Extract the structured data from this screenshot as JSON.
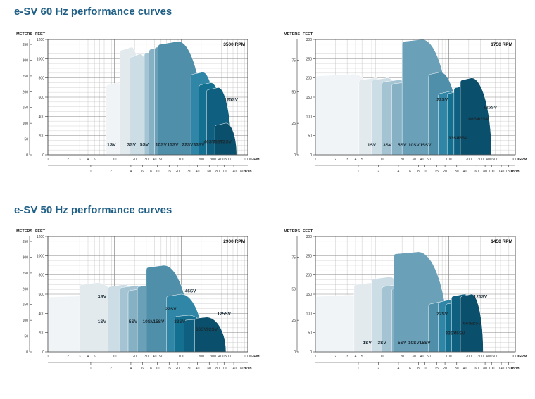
{
  "titles": {
    "hz60": "e-SV 60 Hz performance curves",
    "hz50": "e-SV 50 Hz performance curves"
  },
  "units": {
    "meters": "METERS",
    "feet": "FEET",
    "gpm": "GPM",
    "m3h": "m³/h"
  },
  "colors": {
    "grid_major": "#8a8a8a",
    "grid_minor": "#bdbdbd",
    "axis": "#333333",
    "shades": [
      "#f0f4f6",
      "#e2eaee",
      "#ccdde5",
      "#b9d1dc",
      "#a5c4d3",
      "#86b1c4",
      "#6aa1b9",
      "#4f8fa9",
      "#2f86a6",
      "#1b7f9d",
      "#137090",
      "#0f6080",
      "#0a4f6b"
    ]
  },
  "chart_data": [
    {
      "type": "area",
      "rpm": "3500 RPM",
      "feet_max": 1200,
      "x_gpm_range": [
        1,
        1000
      ],
      "x_m3h_range": [
        0.2272,
        227.2
      ],
      "meters_ticks": [
        "350",
        "300",
        "250",
        "200",
        "150",
        "100",
        "50",
        "0"
      ],
      "feet_ticks": [
        "1200",
        "1000",
        "800",
        "600",
        "400",
        "200",
        "0"
      ],
      "gpm_ticks": [
        "1",
        "2",
        "3",
        "4",
        "5",
        "10",
        "20",
        "30",
        "40",
        "50",
        "100",
        "200",
        "300",
        "400",
        "500",
        "1000"
      ],
      "m3h_ticks": [
        "1",
        "2",
        "4",
        "6",
        "8",
        "10",
        "15",
        "20",
        "30",
        "40",
        "60",
        "80",
        "100",
        "140",
        "180"
      ],
      "curves": [
        {
          "label": "1SV",
          "head_ft": 750,
          "shut_ft": 730,
          "x_start": 7.5,
          "x_knee": 11,
          "x_end": 16,
          "lx": 9,
          "ly": 90
        },
        {
          "label": "3SV",
          "head_ft": 1120,
          "shut_ft": 1090,
          "x_start": 12,
          "x_knee": 18,
          "x_end": 28,
          "lx": 18,
          "ly": 90
        },
        {
          "label": "5SV",
          "head_ft": 1050,
          "shut_ft": 1020,
          "x_start": 17,
          "x_knee": 24,
          "x_end": 42,
          "lx": 28,
          "ly": 90
        },
        {
          "label": "10SV",
          "head_ft": 1080,
          "shut_ft": 1060,
          "x_start": 28,
          "x_knee": 42,
          "x_end": 65,
          "lx": 50,
          "ly": 90
        },
        {
          "label": "15SV",
          "head_ft": 1120,
          "shut_ft": 1100,
          "x_start": 33,
          "x_knee": 55,
          "x_end": 100,
          "lx": 75,
          "ly": 90
        },
        {
          "label": "22SV",
          "head_ft": 1150,
          "shut_ft": 1120,
          "x_start": 40,
          "x_knee": 70,
          "x_end": 140,
          "lx": 125,
          "ly": 90
        },
        {
          "label": "33SV",
          "head_ft": 1180,
          "shut_ft": 1150,
          "x_start": 45,
          "x_knee": 90,
          "x_end": 230,
          "lx": 185,
          "ly": 90
        },
        {
          "label": "46SV",
          "head_ft": 860,
          "shut_ft": 840,
          "x_start": 140,
          "x_knee": 210,
          "x_end": 360,
          "lx": 265,
          "ly": 120
        },
        {
          "label": "66SV",
          "head_ft": 750,
          "shut_ft": 730,
          "x_start": 185,
          "x_knee": 280,
          "x_end": 460,
          "lx": 355,
          "ly": 120
        },
        {
          "label": "92SV",
          "head_ft": 700,
          "shut_ft": 680,
          "x_start": 240,
          "x_knee": 360,
          "x_end": 570,
          "lx": 470,
          "ly": 120
        },
        {
          "label": "125SV",
          "head_ft": 330,
          "shut_ft": 310,
          "x_start": 320,
          "x_knee": 470,
          "x_end": 680,
          "lx": 560,
          "ly": 560
        }
      ]
    },
    {
      "type": "area",
      "rpm": "1750 RPM",
      "feet_max": 300,
      "x_gpm_range": [
        1,
        1000
      ],
      "x_m3h_range": [
        0.2272,
        227.2
      ],
      "meters_ticks": [
        "75",
        "50",
        "25",
        "0"
      ],
      "feet_ticks": [
        "300",
        "250",
        "200",
        "150",
        "100",
        "50",
        "0"
      ],
      "gpm_ticks": [
        "1",
        "2",
        "3",
        "4",
        "5",
        "10",
        "20",
        "30",
        "40",
        "50",
        "100",
        "200",
        "300",
        "400",
        "500",
        "1000"
      ],
      "m3h_ticks": [
        "1",
        "2",
        "4",
        "6",
        "8",
        "10",
        "15",
        "20",
        "30",
        "40",
        "60",
        "80",
        "100",
        "140",
        "180"
      ],
      "curves": [
        {
          "label": "1SV",
          "head_ft": 210,
          "shut_ft": 205,
          "x_start": 1,
          "x_knee": 3.8,
          "x_end": 10,
          "lx": 7,
          "ly": 22
        },
        {
          "label": "3SV",
          "head_ft": 200,
          "shut_ft": 195,
          "x_start": 4.5,
          "x_knee": 8,
          "x_end": 16,
          "lx": 12,
          "ly": 22
        },
        {
          "label": "5SV",
          "head_ft": 200,
          "shut_ft": 195,
          "x_start": 7,
          "x_knee": 12,
          "x_end": 25,
          "lx": 20,
          "ly": 22
        },
        {
          "label": "10SV",
          "head_ft": 195,
          "shut_ft": 190,
          "x_start": 10,
          "x_knee": 18,
          "x_end": 38,
          "lx": 30,
          "ly": 22
        },
        {
          "label": "15SV",
          "head_ft": 190,
          "shut_ft": 185,
          "x_start": 14,
          "x_knee": 26,
          "x_end": 55,
          "lx": 45,
          "ly": 22
        },
        {
          "label": "22SV",
          "head_ft": 300,
          "shut_ft": 295,
          "x_start": 20,
          "x_knee": 40,
          "x_end": 110,
          "lx": 80,
          "ly": 140
        },
        {
          "label": "33SV",
          "head_ft": 215,
          "shut_ft": 210,
          "x_start": 50,
          "x_knee": 75,
          "x_end": 150,
          "lx": 120,
          "ly": 40
        },
        {
          "label": "46SV",
          "head_ft": 165,
          "shut_ft": 160,
          "x_start": 70,
          "x_knee": 105,
          "x_end": 220,
          "lx": 160,
          "ly": 40
        },
        {
          "label": "66SV",
          "head_ft": 165,
          "shut_ft": 160,
          "x_start": 95,
          "x_knee": 140,
          "x_end": 300,
          "lx": 240,
          "ly": 90
        },
        {
          "label": "92SV",
          "head_ft": 180,
          "shut_ft": 175,
          "x_start": 120,
          "x_knee": 180,
          "x_end": 390,
          "lx": 330,
          "ly": 90
        },
        {
          "label": "125SV",
          "head_ft": 200,
          "shut_ft": 195,
          "x_start": 150,
          "x_knee": 220,
          "x_end": 440,
          "lx": 420,
          "ly": 120
        }
      ]
    },
    {
      "type": "area",
      "rpm": "2900 RPM",
      "feet_max": 1200,
      "x_gpm_range": [
        1,
        1000
      ],
      "x_m3h_range": [
        0.2272,
        227.2
      ],
      "meters_ticks": [
        "350",
        "300",
        "250",
        "200",
        "150",
        "100",
        "50",
        "0"
      ],
      "feet_ticks": [
        "1200",
        "1000",
        "800",
        "600",
        "400",
        "200",
        "0"
      ],
      "gpm_ticks": [
        "1",
        "2",
        "3",
        "4",
        "5",
        "10",
        "20",
        "30",
        "40",
        "50",
        "100",
        "200",
        "300",
        "400",
        "500",
        "1000"
      ],
      "m3h_ticks": [
        "1",
        "2",
        "4",
        "6",
        "8",
        "10",
        "15",
        "20",
        "30",
        "40",
        "60",
        "80",
        "100",
        "140",
        "180"
      ],
      "curves": [
        {
          "label": "1SV",
          "head_ft": 580,
          "shut_ft": 570,
          "x_start": 1,
          "x_knee": 3.2,
          "x_end": 10,
          "lx": 6.5,
          "ly": 300
        },
        {
          "label": "3SV",
          "head_ft": 720,
          "shut_ft": 700,
          "x_start": 3,
          "x_knee": 5.5,
          "x_end": 16,
          "lx": 6.5,
          "ly": 560
        },
        {
          "label": "5SV",
          "head_ft": 700,
          "shut_ft": 680,
          "x_start": 8,
          "x_knee": 14,
          "x_end": 28,
          "lx": 19,
          "ly": 300
        },
        {
          "label": "10SV",
          "head_ft": 690,
          "shut_ft": 670,
          "x_start": 12,
          "x_knee": 22,
          "x_end": 45,
          "lx": 32,
          "ly": 300
        },
        {
          "label": "15SV",
          "head_ft": 660,
          "shut_ft": 640,
          "x_start": 16,
          "x_knee": 30,
          "x_end": 62,
          "lx": 46,
          "ly": 300
        },
        {
          "label": "22SV",
          "head_ft": 700,
          "shut_ft": 680,
          "x_start": 22,
          "x_knee": 40,
          "x_end": 90,
          "lx": 70,
          "ly": 430
        },
        {
          "label": "33SV",
          "head_ft": 900,
          "shut_ft": 880,
          "x_start": 30,
          "x_knee": 55,
          "x_end": 140,
          "lx": 95,
          "ly": 300
        },
        {
          "label": "46SV",
          "head_ft": 600,
          "shut_ft": 580,
          "x_start": 60,
          "x_knee": 100,
          "x_end": 220,
          "lx": 138,
          "ly": 620
        },
        {
          "label": "66SV",
          "head_ft": 380,
          "shut_ft": 370,
          "x_start": 80,
          "x_knee": 130,
          "x_end": 280,
          "lx": 200,
          "ly": 220
        },
        {
          "label": "92SV",
          "head_ft": 340,
          "shut_ft": 330,
          "x_start": 110,
          "x_knee": 180,
          "x_end": 380,
          "lx": 290,
          "ly": 220
        },
        {
          "label": "125SV",
          "head_ft": 360,
          "shut_ft": 350,
          "x_start": 160,
          "x_knee": 240,
          "x_end": 470,
          "lx": 440,
          "ly": 380
        }
      ]
    },
    {
      "type": "area",
      "rpm": "1450 RPM",
      "feet_max": 300,
      "x_gpm_range": [
        1,
        1000
      ],
      "x_m3h_range": [
        0.2272,
        227.2
      ],
      "meters_ticks": [
        "75",
        "50",
        "25",
        "0"
      ],
      "feet_ticks": [
        "300",
        "250",
        "200",
        "150",
        "100",
        "50",
        "0"
      ],
      "gpm_ticks": [
        "1",
        "2",
        "3",
        "4",
        "5",
        "10",
        "20",
        "30",
        "40",
        "50",
        "100",
        "200",
        "300",
        "400",
        "500",
        "1000"
      ],
      "m3h_ticks": [
        "1",
        "2",
        "4",
        "6",
        "8",
        "10",
        "15",
        "20",
        "30",
        "40",
        "60",
        "80",
        "100",
        "140",
        "180"
      ],
      "curves": [
        {
          "label": "1SV",
          "head_ft": 148,
          "shut_ft": 144,
          "x_start": 1,
          "x_knee": 3.2,
          "x_end": 9,
          "lx": 6,
          "ly": 20
        },
        {
          "label": "3SV",
          "head_ft": 180,
          "shut_ft": 175,
          "x_start": 3.8,
          "x_knee": 7,
          "x_end": 15,
          "lx": 10,
          "ly": 20
        },
        {
          "label": "5SV",
          "head_ft": 195,
          "shut_ft": 190,
          "x_start": 7,
          "x_knee": 13,
          "x_end": 25,
          "lx": 20,
          "ly": 20
        },
        {
          "label": "10SV",
          "head_ft": 175,
          "shut_ft": 170,
          "x_start": 10,
          "x_knee": 18,
          "x_end": 38,
          "lx": 30,
          "ly": 20
        },
        {
          "label": "15SV",
          "head_ft": 170,
          "shut_ft": 165,
          "x_start": 14,
          "x_knee": 25,
          "x_end": 52,
          "lx": 44,
          "ly": 20
        },
        {
          "label": "22SV",
          "head_ft": 260,
          "shut_ft": 255,
          "x_start": 15,
          "x_knee": 35,
          "x_end": 100,
          "lx": 80,
          "ly": 95
        },
        {
          "label": "33SV",
          "head_ft": 130,
          "shut_ft": 125,
          "x_start": 50,
          "x_knee": 75,
          "x_end": 140,
          "lx": 108,
          "ly": 45
        },
        {
          "label": "46SV",
          "head_ft": 135,
          "shut_ft": 130,
          "x_start": 70,
          "x_knee": 100,
          "x_end": 190,
          "lx": 145,
          "ly": 45
        },
        {
          "label": "66SV",
          "head_ft": 130,
          "shut_ft": 125,
          "x_start": 90,
          "x_knee": 140,
          "x_end": 250,
          "lx": 200,
          "ly": 70
        },
        {
          "label": "92SV",
          "head_ft": 150,
          "shut_ft": 145,
          "x_start": 110,
          "x_knee": 170,
          "x_end": 310,
          "lx": 255,
          "ly": 70
        },
        {
          "label": "125SV",
          "head_ft": 150,
          "shut_ft": 145,
          "x_start": 150,
          "x_knee": 220,
          "x_end": 330,
          "lx": 300,
          "ly": 140
        }
      ]
    }
  ]
}
